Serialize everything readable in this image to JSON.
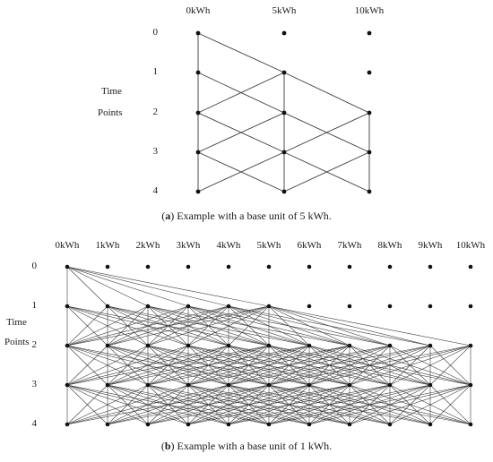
{
  "panel_a": {
    "columns": [
      "0kWh",
      "5kWh",
      "10kWh"
    ],
    "rows": [
      "0",
      "1",
      "2",
      "3",
      "4"
    ],
    "axis_title_line1": "Time",
    "axis_title_line2": "Points",
    "caption_letter": "a",
    "caption_text": "Example with a base unit of 5 kWh.",
    "initial_level": 0
  },
  "panel_b": {
    "columns": [
      "0kWh",
      "1kWh",
      "2kWh",
      "3kWh",
      "4kWh",
      "5kWh",
      "6kWh",
      "7kWh",
      "8kWh",
      "9kWh",
      "10kWh"
    ],
    "rows": [
      "0",
      "1",
      "2",
      "3",
      "4"
    ],
    "axis_title_line1": "Time",
    "axis_title_line2": "Points",
    "caption_letter": "b",
    "caption_text": "Example with a base unit of 1 kWh.",
    "initial_level": 0
  },
  "colors": {
    "line": "#3a3a3a",
    "node": "#111111"
  }
}
